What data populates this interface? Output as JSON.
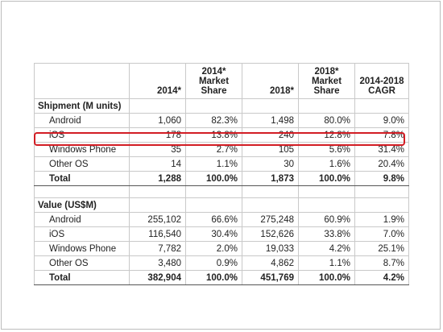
{
  "header": {
    "col_2014": "2014*",
    "col_share2014": "2014* Market Share",
    "col_2018": "2018*",
    "col_share2018": "2018* Market Share",
    "col_cagr": "2014-2018 CAGR"
  },
  "shipment": {
    "title": "Shipment (M units)",
    "rows": [
      {
        "name": "Android",
        "v2014": "1,060",
        "s2014": "82.3%",
        "v2018": "1,498",
        "s2018": "80.0%",
        "cagr": "9.0%"
      },
      {
        "name": "iOS",
        "v2014": "178",
        "s2014": "13.8%",
        "v2018": "240",
        "s2018": "12.8%",
        "cagr": "7.8%"
      },
      {
        "name": "Windows Phone",
        "v2014": "35",
        "s2014": "2.7%",
        "v2018": "105",
        "s2018": "5.6%",
        "cagr": "31.4%"
      },
      {
        "name": "Other OS",
        "v2014": "14",
        "s2014": "1.1%",
        "v2018": "30",
        "s2018": "1.6%",
        "cagr": "20.4%"
      }
    ],
    "total": {
      "name": "Total",
      "v2014": "1,288",
      "s2014": "100.0%",
      "v2018": "1,873",
      "s2018": "100.0%",
      "cagr": "9.8%"
    }
  },
  "value": {
    "title": "Value (US$M)",
    "rows": [
      {
        "name": "Android",
        "v2014": "255,102",
        "s2014": "66.6%",
        "v2018": "275,248",
        "s2018": "60.9%",
        "cagr": "1.9%"
      },
      {
        "name": "iOS",
        "v2014": "116,540",
        "s2014": "30.4%",
        "v2018": "152,626",
        "s2018": "33.8%",
        "cagr": "7.0%"
      },
      {
        "name": "Windows Phone",
        "v2014": "7,782",
        "s2014": "2.0%",
        "v2018": "19,033",
        "s2018": "4.2%",
        "cagr": "25.1%"
      },
      {
        "name": "Other OS",
        "v2014": "3,480",
        "s2014": "0.9%",
        "v2018": "4,862",
        "s2018": "1.1%",
        "cagr": "8.7%"
      }
    ],
    "total": {
      "name": "Total",
      "v2014": "382,904",
      "s2014": "100.0%",
      "v2018": "451,769",
      "s2018": "100.0%",
      "cagr": "4.2%"
    }
  },
  "highlight_color": "#d21d24"
}
